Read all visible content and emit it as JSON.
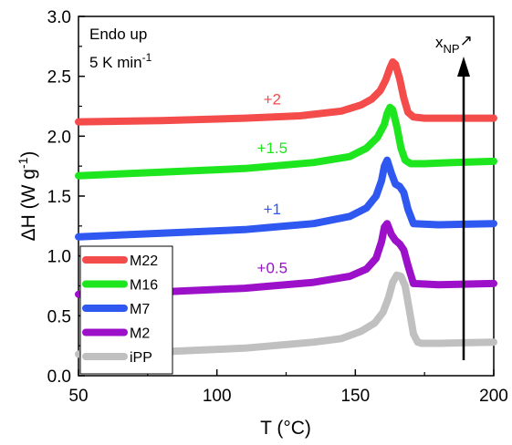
{
  "chart_data": {
    "type": "line",
    "xlabel": "T (°C)",
    "ylabel": "ΔH (W g⁻¹)",
    "ylabel_main": "ΔH (W g",
    "ylabel_sup": "-1",
    "ylabel_close": ")",
    "xlim": [
      50,
      200
    ],
    "ylim": [
      0.0,
      3.0
    ],
    "xticks": [
      50,
      100,
      150,
      200
    ],
    "xtick_labels": [
      "50",
      "100",
      "150",
      "200"
    ],
    "yticks": [
      0.0,
      0.5,
      1.0,
      1.5,
      2.0,
      2.5,
      3.0
    ],
    "ytick_labels": [
      "0.0",
      "0.5",
      "1.0",
      "1.5",
      "2.0",
      "2.5",
      "3.0"
    ],
    "grid": false,
    "legend_position": "bottom-left",
    "annotations": {
      "endo": "Endo up",
      "rate_main": "5 K min",
      "rate_sup": "-1",
      "arrow_main": "x",
      "arrow_sub": "NP",
      "arrow_mark": "↗"
    },
    "series": [
      {
        "name": "M22",
        "color": "#f44b4b",
        "offset_label": "+2",
        "x": [
          50,
          80,
          110,
          130,
          145,
          152,
          156,
          159,
          161,
          162.5,
          163.5,
          164.5,
          166,
          167.5,
          169,
          171,
          175,
          185,
          200
        ],
        "y": [
          2.12,
          2.13,
          2.15,
          2.17,
          2.21,
          2.26,
          2.31,
          2.38,
          2.47,
          2.57,
          2.62,
          2.6,
          2.48,
          2.32,
          2.2,
          2.16,
          2.15,
          2.15,
          2.15
        ]
      },
      {
        "name": "M16",
        "color": "#1ee61e",
        "offset_label": "+1.5",
        "x": [
          50,
          80,
          110,
          120,
          135,
          148,
          154,
          158,
          160.5,
          161.5,
          162.5,
          163.5,
          165,
          166.5,
          168,
          170,
          175,
          185,
          200
        ],
        "y": [
          1.67,
          1.7,
          1.73,
          1.75,
          1.78,
          1.83,
          1.9,
          1.99,
          2.1,
          2.19,
          2.24,
          2.22,
          2.08,
          1.9,
          1.8,
          1.77,
          1.77,
          1.78,
          1.79
        ]
      },
      {
        "name": "M7",
        "color": "#2e58f0",
        "offset_label": "+1",
        "x": [
          50,
          80,
          110,
          120,
          135,
          148,
          154,
          157.5,
          159.5,
          160.5,
          161.5,
          163,
          164.5,
          166,
          167.5,
          169,
          171,
          180,
          200
        ],
        "y": [
          1.16,
          1.19,
          1.22,
          1.24,
          1.27,
          1.33,
          1.4,
          1.5,
          1.63,
          1.75,
          1.8,
          1.69,
          1.6,
          1.58,
          1.53,
          1.39,
          1.27,
          1.26,
          1.27
        ]
      },
      {
        "name": "M2",
        "color": "#9b10c8",
        "offset_label": "+0.5",
        "x": [
          50,
          80,
          110,
          120,
          135,
          148,
          154,
          157.5,
          159.5,
          160.5,
          161.5,
          163,
          164.5,
          166,
          167.5,
          169,
          171,
          180,
          200
        ],
        "y": [
          0.68,
          0.7,
          0.73,
          0.75,
          0.78,
          0.83,
          0.89,
          0.98,
          1.12,
          1.24,
          1.27,
          1.18,
          1.13,
          1.1,
          1.05,
          0.92,
          0.77,
          0.76,
          0.77
        ]
      },
      {
        "name": "iPP",
        "color": "#c0c0c0",
        "offset_label": "",
        "x": [
          50,
          80,
          110,
          120,
          135,
          145,
          152,
          157,
          160,
          162,
          163.5,
          165,
          166.5,
          168,
          169.5,
          171,
          172.5,
          174,
          180,
          200
        ],
        "y": [
          0.18,
          0.2,
          0.23,
          0.25,
          0.28,
          0.31,
          0.37,
          0.44,
          0.53,
          0.65,
          0.78,
          0.84,
          0.83,
          0.75,
          0.55,
          0.35,
          0.28,
          0.27,
          0.27,
          0.28
        ]
      }
    ]
  }
}
